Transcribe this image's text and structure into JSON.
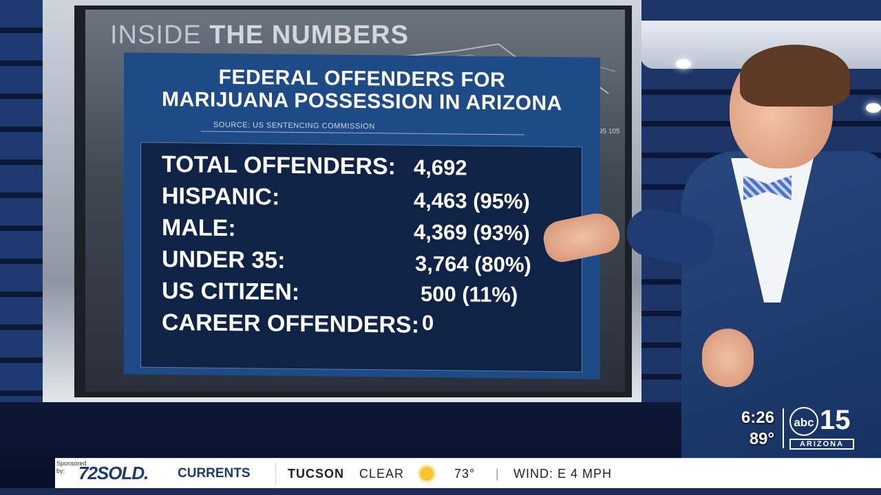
{
  "board": {
    "header_light": "INSIDE",
    "header_bold": "THE NUMBERS",
    "title_line1": "FEDERAL OFFENDERS FOR",
    "title_line2": "MARIJUANA POSSESSION IN ARIZONA",
    "source": "SOURCE: US SENTENCING COMMISSION",
    "rows": [
      {
        "label": "TOTAL OFFENDERS:",
        "value": "4,692"
      },
      {
        "label": "HISPANIC:",
        "value": "4,463 (95%)"
      },
      {
        "label": "MALE:",
        "value": "4,369  (93%)"
      },
      {
        "label": "UNDER 35:",
        "value": "3,764 (80%)"
      },
      {
        "label": "US CITIZEN:",
        "value": "500 (11%)"
      },
      {
        "label": "CAREER OFFENDERS:",
        "value": "0"
      }
    ],
    "bg_ticks": "95 105"
  },
  "bug": {
    "time": "6:26",
    "temp": "89°",
    "network": "abc",
    "channel": "15",
    "region": "ARIZONA"
  },
  "ticker": {
    "sponsored": "Sponsored by:",
    "sponsor": "72SOLD.",
    "segment": "CURRENTS",
    "city": "TUCSON",
    "condition": "CLEAR",
    "temp": "73°",
    "wind": "WIND: E 4 MPH",
    "weather_icon": "sun-icon"
  },
  "colors": {
    "card": "#1e4a86",
    "inner": "#0f2346",
    "brand": "#1b3a74"
  }
}
